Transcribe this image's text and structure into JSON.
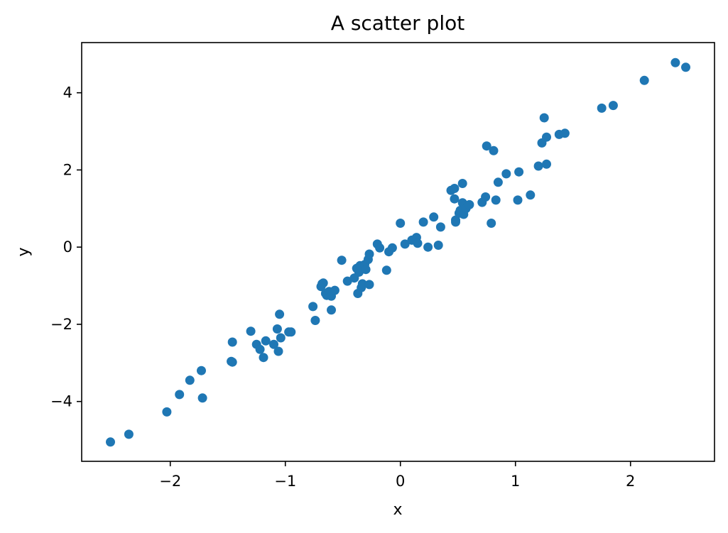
{
  "chart_data": {
    "type": "scatter",
    "title": "A scatter plot",
    "xlabel": "x",
    "ylabel": "y",
    "xlim": [
      -2.77,
      2.73
    ],
    "ylim": [
      -5.55,
      5.3
    ],
    "xticks": [
      -2,
      -1,
      0,
      1,
      2
    ],
    "yticks": [
      -4,
      -2,
      0,
      2,
      4
    ],
    "xtick_labels": [
      "−2",
      "−1",
      "0",
      "1",
      "2"
    ],
    "ytick_labels": [
      "−4",
      "−2",
      "0",
      "2",
      "4"
    ],
    "grid": false,
    "marker_color": "#1f77b4",
    "series": [
      {
        "points": [
          [
            -2.52,
            -5.05
          ],
          [
            -2.36,
            -4.85
          ],
          [
            -2.03,
            -4.27
          ],
          [
            -1.92,
            -3.82
          ],
          [
            -1.83,
            -3.45
          ],
          [
            -1.73,
            -3.2
          ],
          [
            -1.72,
            -3.91
          ],
          [
            -1.47,
            -2.96
          ],
          [
            -1.46,
            -2.98
          ],
          [
            -1.46,
            -2.46
          ],
          [
            -1.3,
            -2.18
          ],
          [
            -1.25,
            -2.52
          ],
          [
            -1.22,
            -2.65
          ],
          [
            -1.19,
            -2.86
          ],
          [
            -1.17,
            -2.43
          ],
          [
            -1.1,
            -2.52
          ],
          [
            -1.07,
            -2.12
          ],
          [
            -1.06,
            -2.7
          ],
          [
            -1.05,
            -1.74
          ],
          [
            -1.04,
            -2.35
          ],
          [
            -0.97,
            -2.2
          ],
          [
            -0.95,
            -2.2
          ],
          [
            -0.76,
            -1.54
          ],
          [
            -0.74,
            -1.9
          ],
          [
            -0.69,
            -1.02
          ],
          [
            -0.68,
            -0.95
          ],
          [
            -0.67,
            -0.93
          ],
          [
            -0.65,
            -1.2
          ],
          [
            -0.64,
            -1.25
          ],
          [
            -0.62,
            -1.15
          ],
          [
            -0.6,
            -1.27
          ],
          [
            -0.6,
            -1.63
          ],
          [
            -0.57,
            -1.12
          ],
          [
            -0.51,
            -0.34
          ],
          [
            -0.46,
            -0.88
          ],
          [
            -0.4,
            -0.8
          ],
          [
            -0.38,
            -0.55
          ],
          [
            -0.37,
            -1.2
          ],
          [
            -0.36,
            -0.65
          ],
          [
            -0.35,
            -0.48
          ],
          [
            -0.34,
            -1.05
          ],
          [
            -0.33,
            -0.95
          ],
          [
            -0.31,
            -0.45
          ],
          [
            -0.3,
            -0.58
          ],
          [
            -0.28,
            -0.32
          ],
          [
            -0.27,
            -0.97
          ],
          [
            -0.27,
            -0.18
          ],
          [
            -0.2,
            0.08
          ],
          [
            -0.18,
            -0.02
          ],
          [
            -0.12,
            -0.6
          ],
          [
            -0.1,
            -0.12
          ],
          [
            -0.07,
            -0.02
          ],
          [
            0.0,
            0.62
          ],
          [
            0.04,
            0.08
          ],
          [
            0.1,
            0.18
          ],
          [
            0.14,
            0.25
          ],
          [
            0.15,
            0.1
          ],
          [
            0.2,
            0.65
          ],
          [
            0.24,
            0.0
          ],
          [
            0.29,
            0.78
          ],
          [
            0.33,
            0.05
          ],
          [
            0.35,
            0.52
          ],
          [
            0.44,
            1.47
          ],
          [
            0.47,
            1.52
          ],
          [
            0.47,
            1.25
          ],
          [
            0.48,
            0.7
          ],
          [
            0.48,
            0.65
          ],
          [
            0.51,
            0.88
          ],
          [
            0.52,
            0.95
          ],
          [
            0.54,
            1.65
          ],
          [
            0.54,
            1.15
          ],
          [
            0.55,
            0.85
          ],
          [
            0.57,
            1.0
          ],
          [
            0.6,
            1.1
          ],
          [
            0.71,
            1.16
          ],
          [
            0.74,
            1.3
          ],
          [
            0.75,
            2.62
          ],
          [
            0.79,
            0.62
          ],
          [
            0.81,
            2.5
          ],
          [
            0.83,
            1.22
          ],
          [
            0.85,
            1.68
          ],
          [
            0.92,
            1.9
          ],
          [
            1.02,
            1.22
          ],
          [
            1.03,
            1.95
          ],
          [
            1.13,
            1.35
          ],
          [
            1.2,
            2.1
          ],
          [
            1.23,
            2.7
          ],
          [
            1.25,
            3.35
          ],
          [
            1.27,
            2.15
          ],
          [
            1.27,
            2.85
          ],
          [
            1.38,
            2.92
          ],
          [
            1.43,
            2.95
          ],
          [
            1.75,
            3.6
          ],
          [
            1.85,
            3.67
          ],
          [
            2.12,
            4.32
          ],
          [
            2.39,
            4.78
          ],
          [
            2.48,
            4.66
          ]
        ]
      }
    ]
  }
}
